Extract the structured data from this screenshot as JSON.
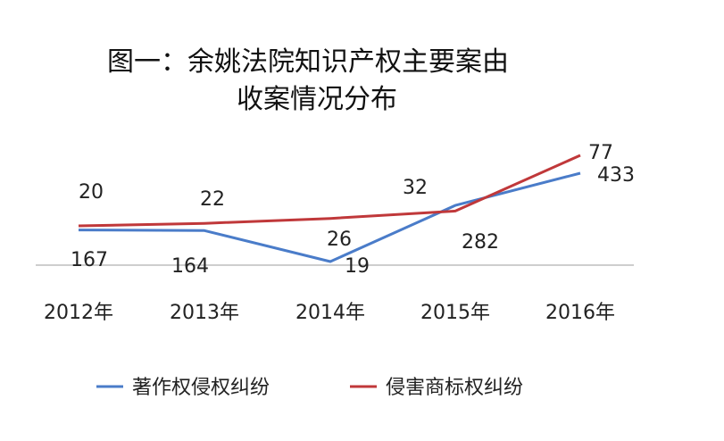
{
  "title_lines": [
    "图一：余姚法院知识产权主要案由",
    "收案情况分布"
  ],
  "chart_data": {
    "type": "line",
    "title": "图一：余姚法院知识产权主要案由收案情况分布",
    "categories": [
      "2012年",
      "2013年",
      "2014年",
      "2015年",
      "2016年"
    ],
    "series": [
      {
        "name": "著作权侵权纠纷",
        "values": [
          167,
          164,
          19,
          282,
          433
        ],
        "labels": [
          "167",
          "164",
          "19",
          "282",
          "433"
        ],
        "color": "#4a7cc9"
      },
      {
        "name": "侵害商标权纠纷",
        "values": [
          20,
          22,
          26,
          32,
          77
        ],
        "labels": [
          "20",
          "22",
          "26",
          "32",
          "77"
        ],
        "color": "#c0383a"
      }
    ],
    "legend_position": "bottom",
    "grid": false
  }
}
